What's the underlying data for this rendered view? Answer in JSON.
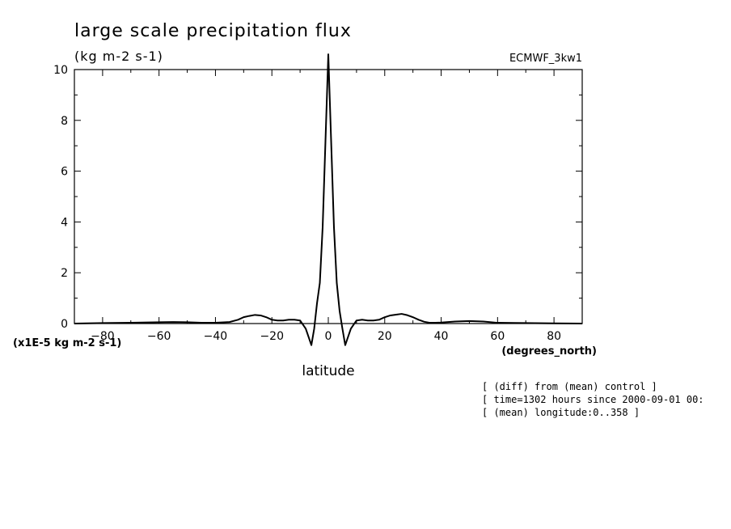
{
  "chart_data": {
    "type": "line",
    "title": "large scale precipitation flux",
    "units": "(kg m-2 s-1)",
    "dataset_label": "ECMWF_3kw1",
    "scale_note": "(x1E-5 kg m-2 s-1)",
    "xlabel": "latitude",
    "x_units": "(degrees_north)",
    "xlim": [
      -90,
      90
    ],
    "ylim": [
      0,
      10
    ],
    "x_ticks": [
      -80,
      -60,
      -40,
      -20,
      0,
      20,
      40,
      60,
      80
    ],
    "y_ticks": [
      0,
      2,
      4,
      6,
      8,
      10
    ],
    "grid": false,
    "series": [
      {
        "x": [
          -90,
          -80,
          -70,
          -60,
          -55,
          -50,
          -45,
          -40,
          -35,
          -32,
          -30,
          -28,
          -26,
          -24,
          -22,
          -20,
          -18,
          -16,
          -14,
          -12,
          -10,
          -8,
          -6,
          -5,
          -4,
          -3,
          -2,
          -1,
          0,
          1,
          2,
          3,
          4,
          5,
          6,
          8,
          10,
          12,
          14,
          16,
          18,
          20,
          22,
          24,
          26,
          28,
          30,
          32,
          34,
          36,
          38,
          40,
          45,
          50,
          55,
          60,
          70,
          80,
          90
        ],
        "y": [
          0.0,
          0.02,
          0.03,
          0.05,
          0.06,
          0.05,
          0.03,
          0.03,
          0.06,
          0.15,
          0.25,
          0.3,
          0.34,
          0.32,
          0.25,
          0.15,
          0.12,
          0.12,
          0.15,
          0.15,
          0.12,
          -0.2,
          -0.85,
          -0.2,
          0.8,
          1.6,
          3.8,
          7.2,
          10.6,
          7.2,
          3.8,
          1.6,
          0.5,
          -0.2,
          -0.85,
          -0.2,
          0.12,
          0.15,
          0.12,
          0.12,
          0.15,
          0.25,
          0.32,
          0.35,
          0.38,
          0.33,
          0.25,
          0.15,
          0.07,
          0.03,
          0.03,
          0.04,
          0.08,
          0.1,
          0.08,
          0.03,
          0.02,
          0.01,
          0.0
        ]
      }
    ]
  },
  "footer_notes": [
    "[ (diff) from (mean) control ]",
    "[ time=1302 hours since 2000-09-01 00:",
    "[ (mean) longitude:0..358 ]"
  ]
}
